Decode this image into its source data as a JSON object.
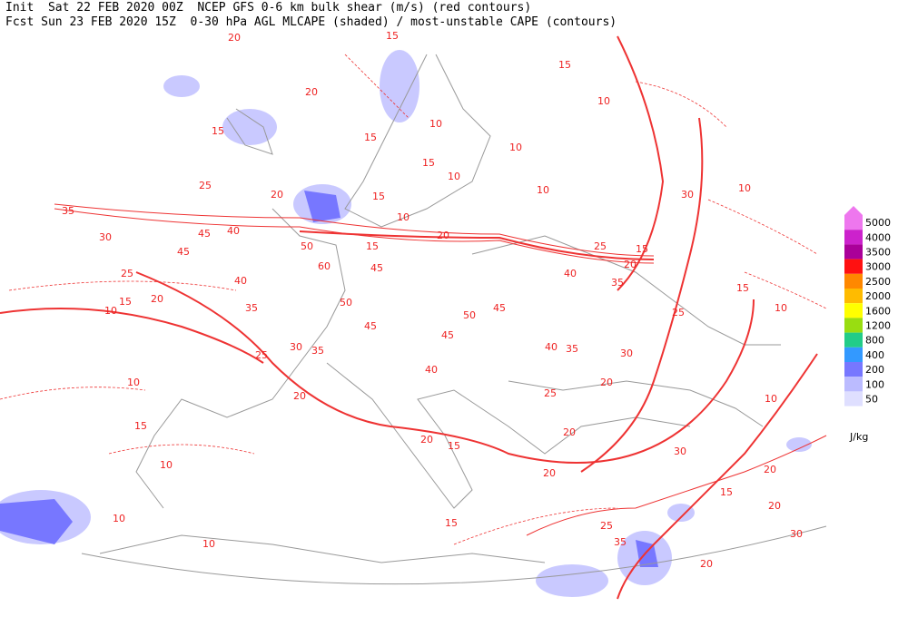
{
  "header": {
    "line1": "Init  Sat 22 FEB 2020 00Z  NCEP GFS 0-6 km bulk shear (m/s) (red contours)",
    "line2": "Fcst Sun 23 FEB 2020 15Z  0-30 hPa AGL MLCAPE (shaded) / most-unstable CAPE (contours)"
  },
  "legend": {
    "levels": [
      {
        "value": 5000,
        "color": "#ee77ee"
      },
      {
        "value": 4000,
        "color": "#cc22cc"
      },
      {
        "value": 3500,
        "color": "#aa0099"
      },
      {
        "value": 3000,
        "color": "#ff1111"
      },
      {
        "value": 2500,
        "color": "#ff8800"
      },
      {
        "value": 2000,
        "color": "#ffbb00"
      },
      {
        "value": 1600,
        "color": "#ffff00"
      },
      {
        "value": 1200,
        "color": "#99dd11"
      },
      {
        "value": 800,
        "color": "#22cc88"
      },
      {
        "value": 400,
        "color": "#3399ff"
      },
      {
        "value": 200,
        "color": "#7777ff"
      },
      {
        "value": 100,
        "color": "#bbbbff"
      },
      {
        "value": 50,
        "color": "#dfdfff"
      }
    ],
    "unit": "J/kg"
  },
  "contour_labels": [
    20,
    15,
    15,
    10,
    20,
    15,
    15,
    10,
    10,
    10,
    15,
    10,
    10,
    30,
    25,
    20,
    15,
    10,
    35,
    30,
    40,
    45,
    45,
    50,
    60,
    45,
    15,
    20,
    25,
    15,
    20,
    40,
    35,
    25,
    15,
    20,
    10,
    40,
    35,
    50,
    45,
    50,
    45,
    45,
    40,
    35,
    30,
    25,
    15,
    10,
    30,
    35,
    25,
    40,
    20,
    25,
    20,
    10,
    15,
    10,
    20,
    15,
    20,
    20,
    30,
    20,
    15,
    20,
    15,
    10,
    10,
    35,
    25,
    20,
    30,
    10
  ]
}
